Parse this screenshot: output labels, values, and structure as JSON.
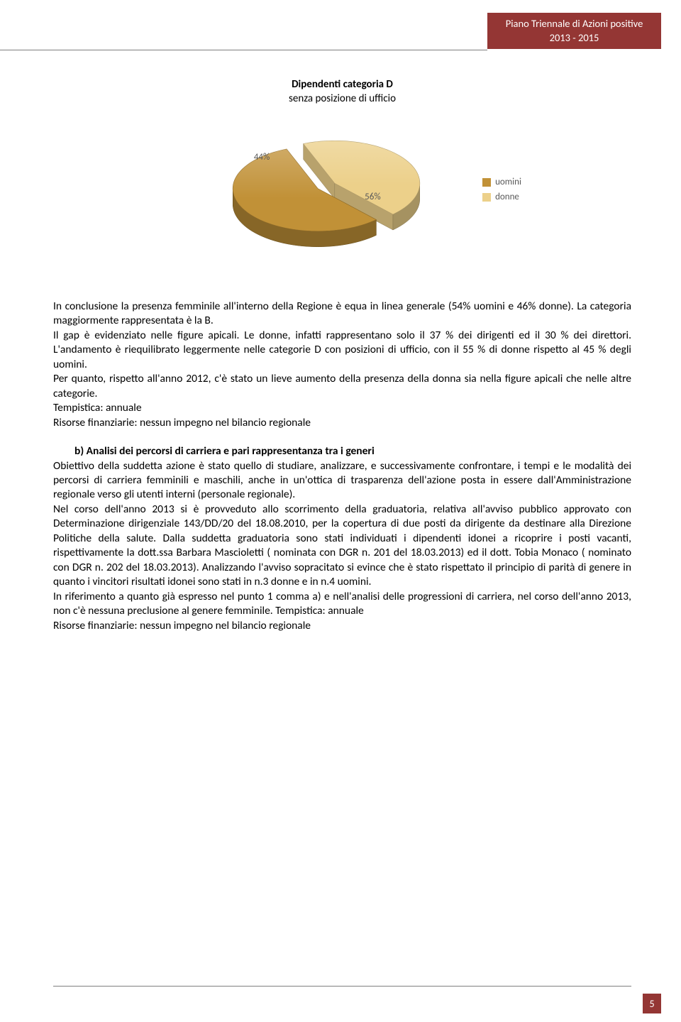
{
  "header": {
    "badge_line1": "Piano Triennale di Azioni positive",
    "badge_line2": "2013 - 2015",
    "badge_bg": "#943634",
    "badge_text_color": "#ffffff"
  },
  "chart": {
    "type": "pie-3d",
    "title_bold": "Dipendenti categoria D",
    "title_sub": "senza posizione di ufficio",
    "slices": [
      {
        "label": "uomini",
        "value": 56,
        "color": "#c19137",
        "label_text": "56%"
      },
      {
        "label": "donne",
        "value": 44,
        "color": "#ecd08a",
        "label_text": "44%"
      }
    ],
    "label_color": "#595959",
    "label_fontsize": 13,
    "background_color": "#ffffff",
    "legend": [
      {
        "label": "uomini",
        "color": "#c19137"
      },
      {
        "label": "donne",
        "color": "#ecd08a"
      }
    ],
    "explode_gap": 14
  },
  "text": {
    "p1": "In conclusione la presenza femminile all'interno della Regione è equa in linea generale (54% uomini e 46% donne).  La categoria maggiormente rappresentata è la B.",
    "p2": "Il gap è evidenziato nelle figure apicali. Le donne, infatti rappresentano solo il 37 % dei dirigenti ed il 30 % dei direttori. L'andamento è riequilibrato leggermente nelle categorie D con posizioni di ufficio, con il 55 % di donne rispetto al 45 % degli uomini.",
    "p3": "Per quanto, rispetto all'anno 2012, c'è stato un lieve aumento della presenza della donna sia nella figure apicali che nelle altre categorie.",
    "p4": "Tempistica: annuale",
    "p5": "Risorse finanziarie: nessun impegno nel bilancio regionale",
    "b_heading": "b)   Analisi dei percorsi di carriera e pari rappresentanza tra i generi",
    "b_body1": "Obiettivo della suddetta azione è stato quello di studiare, analizzare, e successivamente confrontare, i tempi e le modalità dei percorsi di carriera femminili e maschili, anche in un'ottica di trasparenza dell'azione posta in essere dall'Amministrazione regionale verso gli utenti interni (personale regionale).",
    "b_body2": "Nel corso dell'anno 2013 si è provveduto allo scorrimento della graduatoria, relativa all'avviso pubblico approvato con Determinazione dirigenziale 143/DD/20 del 18.08.2010, per la copertura di due posti da dirigente da destinare alla Direzione Politiche della salute. Dalla suddetta graduatoria sono stati individuati i dipendenti idonei a ricoprire i posti vacanti, rispettivamente la dott.ssa Barbara Mascioletti ( nominata con DGR n. 201 del 18.03.2013) ed il dott. Tobia Monaco ( nominato con DGR n. 202 del 18.03.2013). Analizzando l'avviso sopracitato si evince che è stato rispettato il principio di parità di genere in quanto i vincitori risultati idonei sono stati in n.3 donne e in n.4 uomini.",
    "b_body3": "In riferimento a quanto già espresso nel punto 1 comma a) e nell'analisi delle progressioni di carriera, nel corso dell'anno 2013, non c'è nessuna preclusione al genere femminile. Tempistica: annuale",
    "b_body4": "Risorse finanziarie: nessun impegno nel bilancio regionale"
  },
  "footer": {
    "page_number": "5",
    "bg": "#943634"
  }
}
